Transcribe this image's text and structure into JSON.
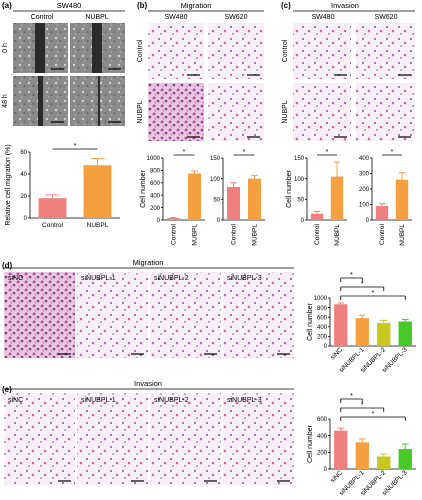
{
  "panels": {
    "a": {
      "label": "(a)",
      "group": "SW480",
      "cols": [
        "Control",
        "NUBPL"
      ],
      "rows": [
        "0 h",
        "48 h"
      ],
      "ylabel": "Relative cell migration (%)",
      "sig": "*",
      "chart_data": {
        "type": "bar",
        "categories": [
          "Control",
          "NUBPL"
        ],
        "values": [
          18,
          48
        ],
        "errors": [
          3,
          6
        ],
        "ylim": [
          0,
          60
        ],
        "yticks": [
          "0",
          "20",
          "40",
          "60"
        ],
        "colors": [
          "#f08080",
          "#f5a040"
        ]
      }
    },
    "b": {
      "label": "(b)",
      "title": "Migration",
      "cols": [
        "SW480",
        "SW620"
      ],
      "rows": [
        "Control",
        "NUBPL"
      ],
      "ylabel": "Cell number",
      "sig": "*",
      "chart_data": [
        {
          "type": "bar",
          "categories": [
            "Control",
            "NUBPL"
          ],
          "values": [
            30,
            750
          ],
          "errors": [
            10,
            40
          ],
          "ylim": [
            0,
            1000
          ],
          "yticks": [
            "0",
            "200",
            "400",
            "600",
            "800",
            "1000"
          ],
          "colors": [
            "#f08080",
            "#f5a040"
          ]
        },
        {
          "type": "bar",
          "categories": [
            "Control",
            "NUBPL"
          ],
          "values": [
            80,
            100
          ],
          "errors": [
            10,
            8
          ],
          "ylim": [
            0,
            150
          ],
          "yticks": [
            "0",
            "50",
            "100",
            "150"
          ],
          "colors": [
            "#f08080",
            "#f5a040"
          ]
        }
      ]
    },
    "c": {
      "label": "(c)",
      "title": "Invasion",
      "cols": [
        "SW480",
        "SW620"
      ],
      "rows": [
        "Control",
        "NUBPL"
      ],
      "ylabel": "Cell number",
      "sig": "*",
      "chart_data": [
        {
          "type": "bar",
          "categories": [
            "Control",
            "NUBPL"
          ],
          "values": [
            15,
            105
          ],
          "errors": [
            6,
            35
          ],
          "ylim": [
            0,
            150
          ],
          "yticks": [
            "0",
            "50",
            "100",
            "150"
          ],
          "colors": [
            "#f08080",
            "#f5a040"
          ]
        },
        {
          "type": "bar",
          "categories": [
            "Control",
            "NUBPL"
          ],
          "values": [
            90,
            260
          ],
          "errors": [
            15,
            45
          ],
          "ylim": [
            0,
            400
          ],
          "yticks": [
            "0",
            "100",
            "200",
            "300",
            "400"
          ],
          "colors": [
            "#f08080",
            "#f5a040"
          ]
        }
      ]
    },
    "d": {
      "label": "(d)",
      "title": "Migration",
      "cols": [
        "siNC",
        "siNUBPL-1",
        "siNUBPL-2",
        "siNUBPL-3"
      ],
      "ylabel": "Cell number",
      "sig": [
        "*",
        "*",
        "*"
      ],
      "chart_data": {
        "type": "bar",
        "categories": [
          "siNC",
          "siNUBPL-1",
          "siNUBPL-2",
          "siNUBPL-3"
        ],
        "values": [
          870,
          580,
          480,
          510
        ],
        "errors": [
          25,
          60,
          55,
          45
        ],
        "ylim": [
          0,
          1000
        ],
        "yticks": [
          "0",
          "200",
          "400",
          "600",
          "800",
          "1000"
        ],
        "colors": [
          "#f08080",
          "#f5a040",
          "#c8c81e",
          "#46c828"
        ]
      }
    },
    "e": {
      "label": "(e)",
      "title": "Invasion",
      "cols": [
        "siNC",
        "siNUBPL-1",
        "siNUBPL-2",
        "siNUBPL-3"
      ],
      "ylabel": "Cell number",
      "sig": [
        "*",
        "*",
        "*"
      ],
      "chart_data": {
        "type": "bar",
        "categories": [
          "siNC",
          "siNUBPL-1",
          "siNUBPL-2",
          "siNUBPL-3"
        ],
        "values": [
          460,
          320,
          150,
          240
        ],
        "errors": [
          30,
          40,
          30,
          60
        ],
        "ylim": [
          0,
          600
        ],
        "yticks": [
          "0",
          "200",
          "400",
          "600"
        ],
        "colors": [
          "#f08080",
          "#f5a040",
          "#c8c81e",
          "#46c828"
        ]
      }
    }
  }
}
